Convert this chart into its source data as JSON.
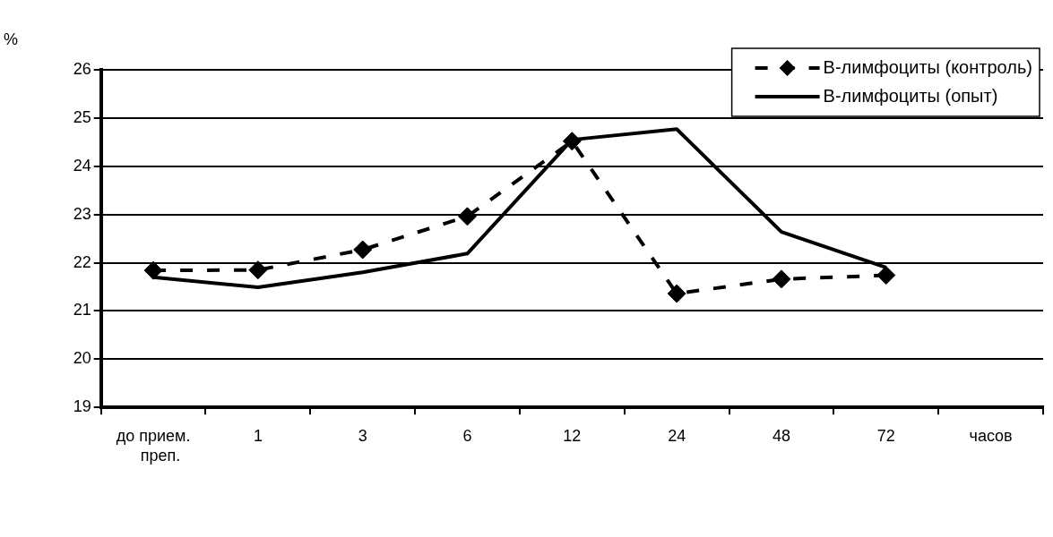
{
  "chart_data": {
    "type": "line",
    "ylabel": "%",
    "xlabel": "часов",
    "categories": [
      "до прием. преп.",
      "1",
      "3",
      "6",
      "12",
      "24",
      "48",
      "72"
    ],
    "ylim": [
      19,
      26
    ],
    "yticks": [
      19,
      20,
      21,
      22,
      23,
      24,
      25,
      26
    ],
    "grid": "y",
    "legend": "top right",
    "series": [
      {
        "name": "В-лимфоциты (контроль)",
        "color": "#000000",
        "marker": "diamond",
        "line_style": "dashed",
        "values": [
          21.84,
          21.85,
          22.27,
          22.96,
          24.52,
          21.36,
          21.66,
          21.74
        ]
      },
      {
        "name": "В-лимфоциты (опыт)",
        "color": "#000000",
        "marker": "none",
        "line_style": "solid",
        "values": [
          21.7,
          21.49,
          21.8,
          22.19,
          24.55,
          24.77,
          22.64,
          21.9
        ]
      }
    ]
  }
}
